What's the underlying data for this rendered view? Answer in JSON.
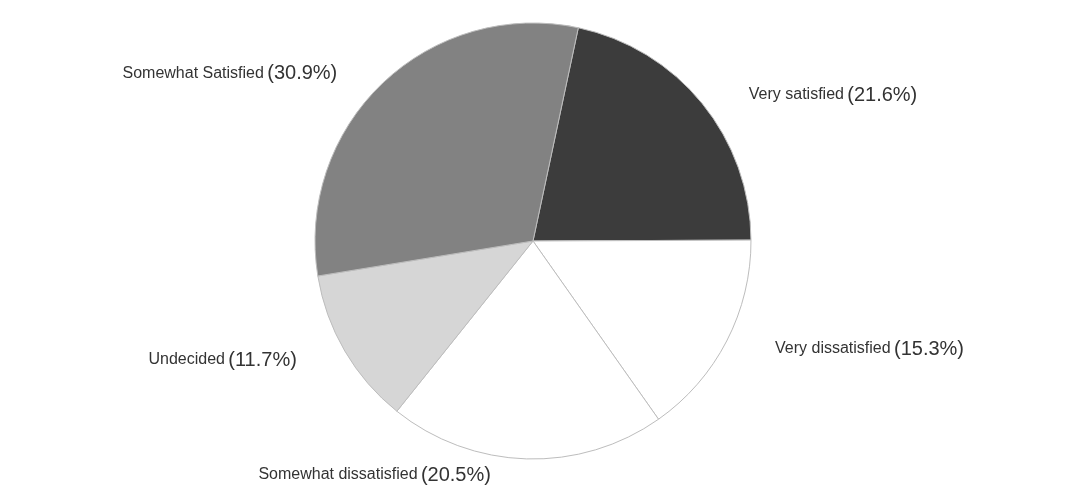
{
  "chart_data": {
    "type": "pie",
    "categories": [
      "Very satisfied",
      "Very dissatisfied",
      "Somewhat dissatisfied",
      "Undecided",
      "Somewhat Satisfied"
    ],
    "values": [
      21.6,
      15.3,
      20.5,
      11.7,
      30.9
    ],
    "value_labels": [
      "(21.6%)",
      "(15.3%)",
      "(20.5%)",
      "(11.7%)",
      "(30.9%)"
    ],
    "colors": [
      "#3c3c3c",
      "#ffffff",
      "#ffffff",
      "#d6d6d6",
      "#828282"
    ],
    "legend": false
  }
}
